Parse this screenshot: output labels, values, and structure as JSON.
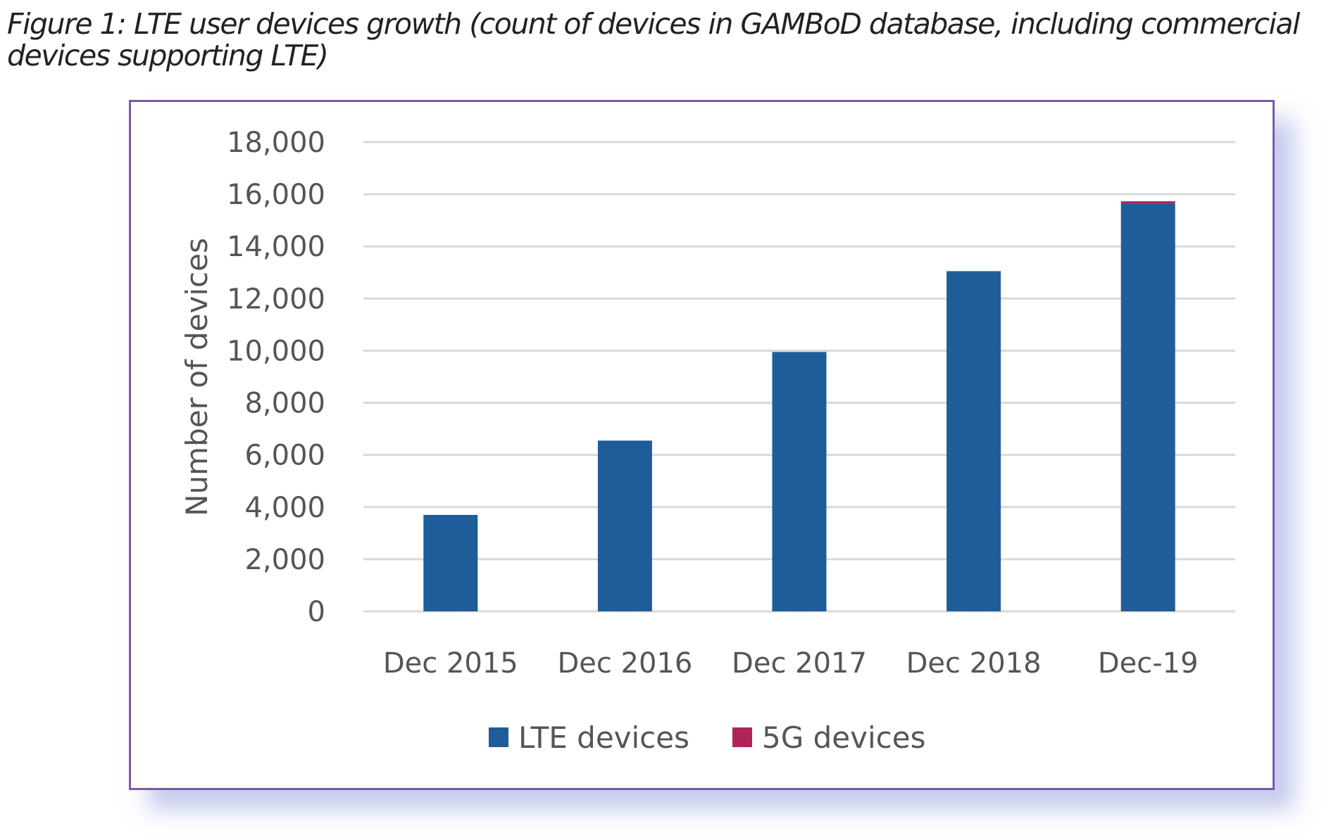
{
  "caption": "Figure 1: LTE user devices growth (count of devices in GAMBoD database, including commercial devices supporting LTE)",
  "caption_lines": [
    "Figure 1: LTE user devices growth (count of devices in GAMBoD database, including commercial",
    "devices supporting LTE)"
  ],
  "chart_data": {
    "type": "bar",
    "stacked": true,
    "categories": [
      "Dec 2015",
      "Dec 2016",
      "Dec 2017",
      "Dec 2018",
      "Dec-19"
    ],
    "series": [
      {
        "name": "LTE devices",
        "values": [
          3700,
          6550,
          9950,
          13050,
          15650
        ],
        "color": "#1f5c9a"
      },
      {
        "name": "5G devices",
        "values": [
          0,
          0,
          0,
          0,
          80
        ],
        "color": "#b0245a"
      }
    ],
    "xlabel": "",
    "ylabel": "Number of devices",
    "ylim": [
      0,
      18000
    ],
    "yticks": [
      0,
      2000,
      4000,
      6000,
      8000,
      10000,
      12000,
      14000,
      16000,
      18000
    ],
    "ytick_labels": [
      "0",
      "2,000",
      "4,000",
      "6,000",
      "8,000",
      "10,000",
      "12,000",
      "14,000",
      "16,000",
      "18,000"
    ],
    "grid": true,
    "legend": "bottom"
  }
}
